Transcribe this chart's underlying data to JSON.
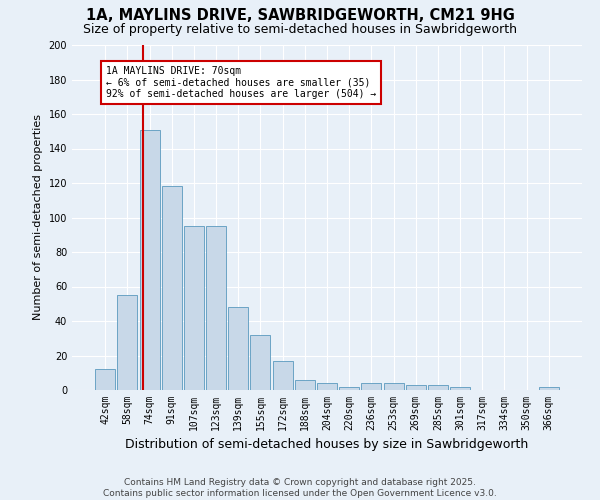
{
  "title": "1A, MAYLINS DRIVE, SAWBRIDGEWORTH, CM21 9HG",
  "subtitle": "Size of property relative to semi-detached houses in Sawbridgeworth",
  "xlabel": "Distribution of semi-detached houses by size in Sawbridgeworth",
  "ylabel": "Number of semi-detached properties",
  "footnote": "Contains HM Land Registry data © Crown copyright and database right 2025.\nContains public sector information licensed under the Open Government Licence v3.0.",
  "categories": [
    "42sqm",
    "58sqm",
    "74sqm",
    "91sqm",
    "107sqm",
    "123sqm",
    "139sqm",
    "155sqm",
    "172sqm",
    "188sqm",
    "204sqm",
    "220sqm",
    "236sqm",
    "253sqm",
    "269sqm",
    "285sqm",
    "301sqm",
    "317sqm",
    "334sqm",
    "350sqm",
    "366sqm"
  ],
  "bar_values": [
    12,
    55,
    151,
    118,
    95,
    95,
    48,
    32,
    17,
    6,
    4,
    2,
    4,
    4,
    3,
    3,
    2,
    0,
    0,
    0,
    2
  ],
  "bar_color": "#c8d8e8",
  "bar_edge_color": "#5a9abf",
  "background_color": "#e8f0f8",
  "grid_color": "#ffffff",
  "annotation_title": "1A MAYLINS DRIVE: 70sqm",
  "annotation_line1": "← 6% of semi-detached houses are smaller (35)",
  "annotation_line2": "92% of semi-detached houses are larger (504) →",
  "annotation_box_color": "#ffffff",
  "annotation_border_color": "#cc0000",
  "red_line_color": "#cc0000",
  "ylim": [
    0,
    200
  ],
  "yticks": [
    0,
    20,
    40,
    60,
    80,
    100,
    120,
    140,
    160,
    180,
    200
  ],
  "title_fontsize": 10.5,
  "subtitle_fontsize": 9,
  "xlabel_fontsize": 9,
  "ylabel_fontsize": 8,
  "tick_fontsize": 7,
  "footnote_fontsize": 6.5,
  "annotation_fontsize": 7
}
